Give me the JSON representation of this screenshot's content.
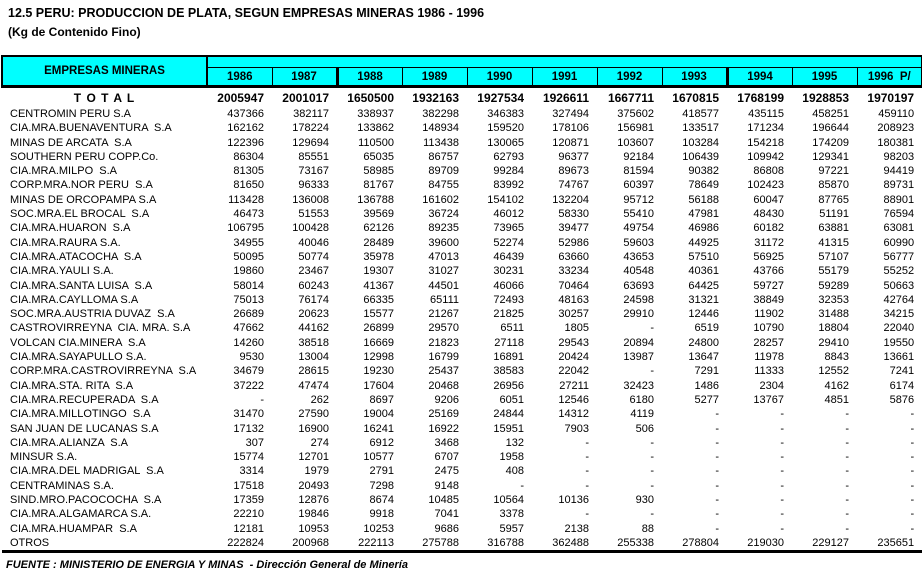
{
  "title": "12.5 PERU: PRODUCCION DE PLATA, SEGUN EMPRESAS MINERAS 1986 - 1996",
  "subtitle": "(Kg de Contenido Fino)",
  "colors": {
    "header_bg": "#00FFFF",
    "border": "#000000",
    "text": "#000000",
    "page_bg": "#FFFFFF"
  },
  "table": {
    "header": {
      "company_column": "EMPRESAS MINERAS",
      "years": [
        "1986",
        "1987",
        "1988",
        "1989",
        "1990",
        "1991",
        "1992",
        "1993",
        "1994",
        "1995",
        "1996  P/"
      ],
      "thick_divider_before": [
        "1988",
        "1994"
      ]
    },
    "total_row": {
      "label": "T O T A L",
      "values": [
        "2005947",
        "2001017",
        "1650500",
        "1932163",
        "1927534",
        "1926611",
        "1667711",
        "1670815",
        "1768199",
        "1928853",
        "1970197"
      ]
    },
    "rows": [
      {
        "name": "CENTROMIN PERU S.A",
        "values": [
          "437366",
          "382117",
          "338937",
          "382298",
          "346383",
          "327494",
          "375602",
          "418577",
          "435115",
          "458251",
          "459110"
        ]
      },
      {
        "name": "CIA.MRA.BUENAVENTURA  S.A",
        "values": [
          "162162",
          "178224",
          "133862",
          "148934",
          "159520",
          "178106",
          "156981",
          "133517",
          "171234",
          "196644",
          "208923"
        ]
      },
      {
        "name": "MINAS DE ARCATA  S.A",
        "values": [
          "122396",
          "129694",
          "110500",
          "113438",
          "130065",
          "120871",
          "103607",
          "103284",
          "154218",
          "174209",
          "180381"
        ]
      },
      {
        "name": "SOUTHERN PERU COPP.Co.",
        "values": [
          "86304",
          "85551",
          "65035",
          "86757",
          "62793",
          "96377",
          "92184",
          "106439",
          "109942",
          "129341",
          "98203"
        ]
      },
      {
        "name": "CIA.MRA.MILPO  S.A",
        "values": [
          "81305",
          "73167",
          "58985",
          "89709",
          "99284",
          "89673",
          "81594",
          "90382",
          "86808",
          "97221",
          "94419"
        ]
      },
      {
        "name": "CORP.MRA.NOR PERU  S.A",
        "values": [
          "81650",
          "96333",
          "81767",
          "84755",
          "83992",
          "74767",
          "60397",
          "78649",
          "102423",
          "85870",
          "89731"
        ]
      },
      {
        "name": "MINAS DE ORCOPAMPA S.A",
        "values": [
          "113428",
          "136008",
          "136788",
          "161602",
          "154102",
          "132204",
          "95712",
          "56188",
          "60047",
          "87765",
          "88901"
        ]
      },
      {
        "name": "SOC.MRA.EL BROCAL  S.A",
        "values": [
          "46473",
          "51553",
          "39569",
          "36724",
          "46012",
          "58330",
          "55410",
          "47981",
          "48430",
          "51191",
          "76594"
        ]
      },
      {
        "name": "CIA.MRA.HUARON  S.A",
        "values": [
          "106795",
          "100428",
          "62126",
          "89235",
          "73965",
          "39477",
          "49754",
          "46986",
          "60182",
          "63881",
          "63081"
        ]
      },
      {
        "name": "CIA.MRA.RAURA S.A.",
        "values": [
          "34955",
          "40046",
          "28489",
          "39600",
          "52274",
          "52986",
          "59603",
          "44925",
          "31172",
          "41315",
          "60990"
        ]
      },
      {
        "name": "CIA.MRA.ATACOCHA  S.A",
        "values": [
          "50095",
          "50774",
          "35978",
          "47013",
          "46439",
          "63660",
          "43653",
          "57510",
          "56925",
          "57107",
          "56777"
        ]
      },
      {
        "name": "CIA.MRA.YAULI S.A.",
        "values": [
          "19860",
          "23467",
          "19307",
          "31027",
          "30231",
          "33234",
          "40548",
          "40361",
          "43766",
          "55179",
          "55252"
        ]
      },
      {
        "name": "CIA.MRA.SANTA LUISA  S.A",
        "values": [
          "58014",
          "60243",
          "41367",
          "44501",
          "46066",
          "70464",
          "63693",
          "64425",
          "59727",
          "59289",
          "50663"
        ]
      },
      {
        "name": "CIA.MRA.CAYLLOMA S.A",
        "values": [
          "75013",
          "76174",
          "66335",
          "65111",
          "72493",
          "48163",
          "24598",
          "31321",
          "38849",
          "32353",
          "42764"
        ]
      },
      {
        "name": "SOC.MRA.AUSTRIA DUVAZ  S.A",
        "values": [
          "26689",
          "20623",
          "15577",
          "21267",
          "21825",
          "30257",
          "29910",
          "12446",
          "11902",
          "31488",
          "34215"
        ]
      },
      {
        "name": "CASTROVIRREYNA  CIA. MRA. S.A",
        "values": [
          "47662",
          "44162",
          "26899",
          "29570",
          "6511",
          "1805",
          "-",
          "6519",
          "10790",
          "18804",
          "22040"
        ]
      },
      {
        "name": "VOLCAN CIA.MINERA  S.A",
        "values": [
          "14260",
          "38518",
          "16669",
          "21823",
          "27118",
          "29543",
          "20894",
          "24800",
          "28257",
          "29410",
          "19550"
        ]
      },
      {
        "name": "CIA.MRA.SAYAPULLO S.A.",
        "values": [
          "9530",
          "13004",
          "12998",
          "16799",
          "16891",
          "20424",
          "13987",
          "13647",
          "11978",
          "8843",
          "13661"
        ]
      },
      {
        "name": "CORP.MRA.CASTROVIRREYNA  S.A",
        "values": [
          "34679",
          "28615",
          "19230",
          "25437",
          "38583",
          "22042",
          "-",
          "7291",
          "11333",
          "12552",
          "7241"
        ]
      },
      {
        "name": "CIA.MRA.STA. RITA  S.A",
        "values": [
          "37222",
          "47474",
          "17604",
          "20468",
          "26956",
          "27211",
          "32423",
          "1486",
          "2304",
          "4162",
          "6174"
        ]
      },
      {
        "name": "CIA.MRA.RECUPERADA  S.A",
        "values": [
          "-",
          "262",
          "8697",
          "9206",
          "6051",
          "12546",
          "6180",
          "5277",
          "13767",
          "4851",
          "5876"
        ]
      },
      {
        "name": "CIA.MRA.MILLOTINGO  S.A",
        "values": [
          "31470",
          "27590",
          "19004",
          "25169",
          "24844",
          "14312",
          "4119",
          "-",
          "-",
          "-",
          "-"
        ]
      },
      {
        "name": "SAN JUAN DE LUCANAS S.A",
        "values": [
          "17132",
          "16900",
          "16241",
          "16922",
          "15951",
          "7903",
          "506",
          "-",
          "-",
          "-",
          "-"
        ]
      },
      {
        "name": "CIA.MRA.ALIANZA  S.A",
        "values": [
          "307",
          "274",
          "6912",
          "3468",
          "132",
          "-",
          "-",
          "-",
          "-",
          "-",
          "-"
        ]
      },
      {
        "name": "MINSUR S.A.",
        "values": [
          "15774",
          "12701",
          "10577",
          "6707",
          "1958",
          "-",
          "-",
          "-",
          "-",
          "-",
          "-"
        ]
      },
      {
        "name": "CIA.MRA.DEL MADRIGAL  S.A",
        "values": [
          "3314",
          "1979",
          "2791",
          "2475",
          "408",
          "-",
          "-",
          "-",
          "-",
          "-",
          "-"
        ]
      },
      {
        "name": "CENTRAMINAS S.A.",
        "values": [
          "17518",
          "20493",
          "7298",
          "9148",
          "-",
          "-",
          "-",
          "-",
          "-",
          "-",
          "-"
        ]
      },
      {
        "name": "SIND.MRO.PACOCOCHA  S.A",
        "values": [
          "17359",
          "12876",
          "8674",
          "10485",
          "10564",
          "10136",
          "930",
          "-",
          "-",
          "-",
          "-"
        ]
      },
      {
        "name": "CIA.MRA.ALGAMARCA S.A.",
        "values": [
          "22210",
          "19846",
          "9918",
          "7041",
          "3378",
          "-",
          "-",
          "-",
          "-",
          "-",
          "-"
        ]
      },
      {
        "name": "CIA.MRA.HUAMPAR  S.A",
        "values": [
          "12181",
          "10953",
          "10253",
          "9686",
          "5957",
          "2138",
          "88",
          "-",
          "-",
          "-",
          "-"
        ]
      },
      {
        "name": "OTROS",
        "values": [
          "222824",
          "200968",
          "222113",
          "275788",
          "316788",
          "362488",
          "255338",
          "278804",
          "219030",
          "229127",
          "235651"
        ]
      }
    ]
  },
  "footer": {
    "source": "FUENTE : MINISTERIO DE ENERGIA Y MINAS  - Dirección General de Minería"
  }
}
